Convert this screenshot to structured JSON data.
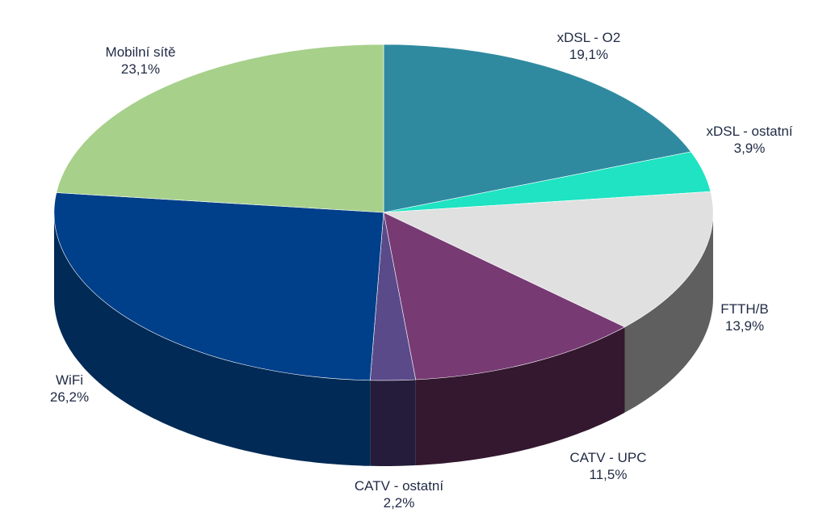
{
  "chart_data": {
    "type": "pie",
    "title": "",
    "series": [
      {
        "name": "",
        "slices": [
          {
            "label": "xDSL - O2",
            "value": 19.1,
            "value_label": "19,1%",
            "color": "#2f8aa0",
            "side_color": "#1e5b6a"
          },
          {
            "label": "xDSL - ostatní",
            "value": 3.9,
            "value_label": "3,9%",
            "color": "#1fe3c2",
            "side_color": "#14907c"
          },
          {
            "label": "FTTH/B",
            "value": 13.9,
            "value_label": "13,9%",
            "color": "#e0e0e0",
            "side_color": "#5f5f5f"
          },
          {
            "label": "CATV - UPC",
            "value": 11.5,
            "value_label": "11,5%",
            "color": "#773a73",
            "side_color": "#33182f"
          },
          {
            "label": "CATV - ostatní",
            "value": 2.2,
            "value_label": "2,2%",
            "color": "#5a4a8a",
            "side_color": "#241c3a"
          },
          {
            "label": "WiFi",
            "value": 26.2,
            "value_label": "26,2%",
            "color": "#003f8a",
            "side_color": "#012a56"
          },
          {
            "label": "Mobilní sítě",
            "value": 23.1,
            "value_label": "23,1%",
            "color": "#a7d08a",
            "side_color": "#6e8e58"
          }
        ]
      }
    ],
    "legend": "none",
    "style": "3d-tilted"
  }
}
